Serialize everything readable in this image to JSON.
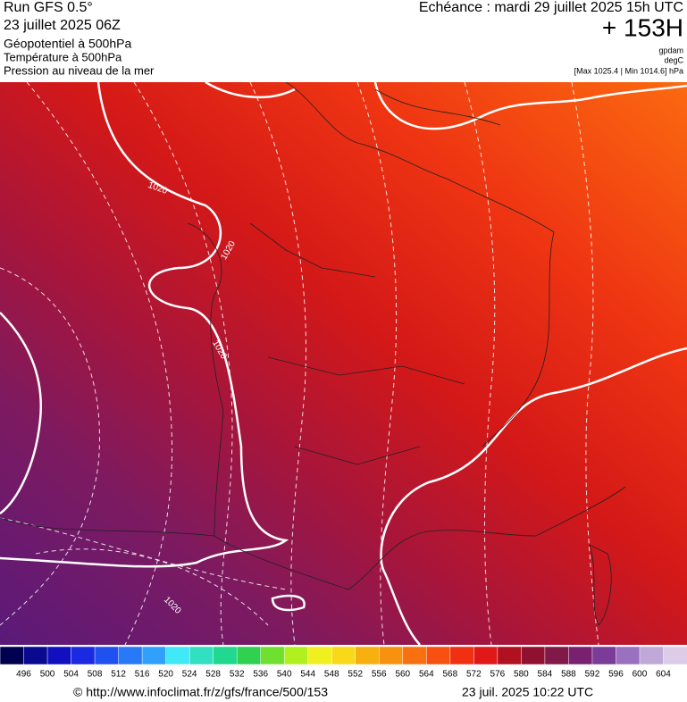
{
  "header": {
    "left": [
      "Run GFS 0.5°",
      "23 juillet 2025 06Z",
      "Géopotentiel à 500hPa",
      "Température à 500hPa",
      "Pression au niveau de la mer"
    ],
    "echeance": "Echéance : mardi 29 juillet 2025 15h UTC",
    "lead": "+ 153H",
    "units": [
      "gpdam",
      "degC",
      "[Max 1025.4 | Min 1014.6] hPa"
    ]
  },
  "map": {
    "isobar_labels": [
      "1020",
      "1020",
      "1020",
      "1020"
    ]
  },
  "scale": {
    "labels": [
      496,
      500,
      504,
      508,
      512,
      516,
      520,
      524,
      528,
      532,
      536,
      540,
      544,
      548,
      552,
      556,
      560,
      564,
      568,
      572,
      576,
      580,
      584,
      588,
      592,
      596,
      600,
      604
    ]
  },
  "footer": {
    "url": "© http://www.infoclimat.fr/z/gfs/france/500/153",
    "date": "23 juil. 2025 10:22 UTC"
  }
}
